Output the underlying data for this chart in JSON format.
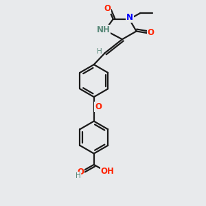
{
  "bg_color": "#e8eaec",
  "bond_color": "#1a1a1a",
  "N_color": "#0000ff",
  "O_color": "#ff2200",
  "H_color": "#5a8a7a",
  "line_width": 1.6,
  "figsize": [
    3.0,
    3.0
  ],
  "dpi": 100,
  "xlim": [
    0,
    10
  ],
  "ylim": [
    0,
    10
  ]
}
